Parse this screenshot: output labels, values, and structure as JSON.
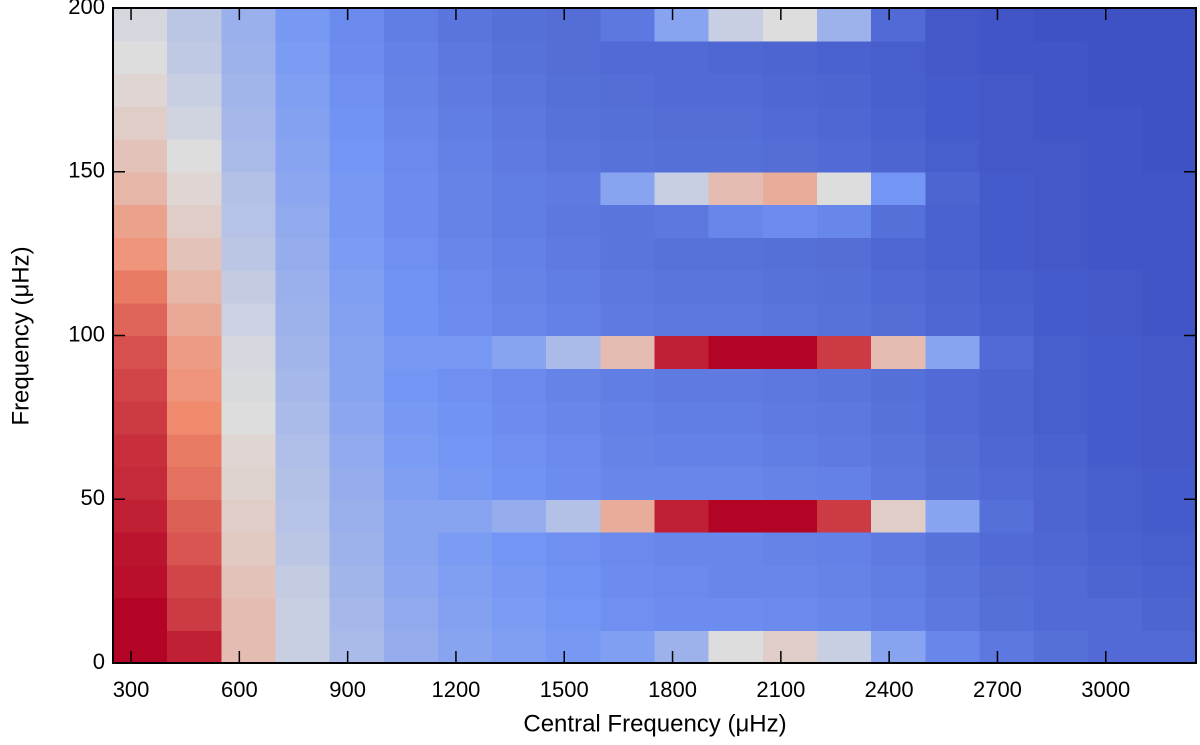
{
  "chart_data": {
    "type": "heatmap",
    "xlabel": "Central Frequency (μHz)",
    "ylabel": "Frequency (μHz)",
    "xlim": [
      250,
      3250
    ],
    "xticks": [
      300,
      600,
      900,
      1200,
      1500,
      1800,
      2100,
      2400,
      2700,
      3000
    ],
    "ylim": [
      0,
      200
    ],
    "yticks": [
      0,
      50,
      100,
      150,
      200
    ],
    "colormap": [
      "#3b4cc0",
      "#7396f5",
      "#dddddd",
      "#f08b6e",
      "#b40426"
    ],
    "x_bins": [
      250,
      400,
      550,
      700,
      850,
      1000,
      1150,
      1300,
      1450,
      1600,
      1750,
      1900,
      2050,
      2200,
      2350,
      2500,
      2650,
      2800,
      2950,
      3100,
      3250
    ],
    "y_bins": [
      0,
      10,
      20,
      30,
      40,
      50,
      60,
      70,
      80,
      90,
      100,
      110,
      120,
      130,
      140,
      150,
      160,
      170,
      180,
      190,
      200
    ],
    "z": [
      [
        1.0,
        0.95,
        0.6,
        0.45,
        0.38,
        0.33,
        0.3,
        0.28,
        0.26,
        0.28,
        0.35,
        0.5,
        0.55,
        0.45,
        0.3,
        0.2,
        0.15,
        0.12,
        0.1,
        0.1
      ],
      [
        1.0,
        0.9,
        0.6,
        0.45,
        0.37,
        0.32,
        0.29,
        0.27,
        0.25,
        0.23,
        0.22,
        0.22,
        0.21,
        0.2,
        0.18,
        0.15,
        0.12,
        0.1,
        0.1,
        0.08
      ],
      [
        0.98,
        0.88,
        0.58,
        0.44,
        0.36,
        0.31,
        0.28,
        0.26,
        0.24,
        0.22,
        0.21,
        0.2,
        0.2,
        0.19,
        0.17,
        0.14,
        0.11,
        0.1,
        0.08,
        0.07
      ],
      [
        0.97,
        0.85,
        0.56,
        0.42,
        0.35,
        0.3,
        0.27,
        0.25,
        0.23,
        0.21,
        0.2,
        0.2,
        0.19,
        0.18,
        0.16,
        0.13,
        0.1,
        0.09,
        0.07,
        0.06
      ],
      [
        0.95,
        0.83,
        0.55,
        0.41,
        0.34,
        0.3,
        0.3,
        0.33,
        0.4,
        0.65,
        0.95,
        1.0,
        1.0,
        0.9,
        0.55,
        0.3,
        0.12,
        0.08,
        0.06,
        0.05
      ],
      [
        0.93,
        0.8,
        0.53,
        0.4,
        0.33,
        0.28,
        0.26,
        0.24,
        0.22,
        0.2,
        0.2,
        0.2,
        0.19,
        0.18,
        0.15,
        0.12,
        0.1,
        0.08,
        0.06,
        0.05
      ],
      [
        0.92,
        0.78,
        0.52,
        0.39,
        0.32,
        0.27,
        0.25,
        0.23,
        0.21,
        0.19,
        0.18,
        0.18,
        0.17,
        0.16,
        0.14,
        0.11,
        0.09,
        0.07,
        0.05,
        0.04
      ],
      [
        0.9,
        0.75,
        0.5,
        0.38,
        0.31,
        0.26,
        0.24,
        0.22,
        0.2,
        0.18,
        0.17,
        0.17,
        0.16,
        0.15,
        0.13,
        0.1,
        0.08,
        0.06,
        0.05,
        0.04
      ],
      [
        0.88,
        0.72,
        0.49,
        0.37,
        0.3,
        0.25,
        0.23,
        0.21,
        0.19,
        0.17,
        0.16,
        0.16,
        0.15,
        0.14,
        0.12,
        0.1,
        0.08,
        0.06,
        0.05,
        0.04
      ],
      [
        0.86,
        0.7,
        0.48,
        0.36,
        0.3,
        0.26,
        0.26,
        0.3,
        0.38,
        0.6,
        0.95,
        1.0,
        1.0,
        0.9,
        0.6,
        0.3,
        0.1,
        0.06,
        0.05,
        0.04
      ],
      [
        0.82,
        0.66,
        0.46,
        0.35,
        0.29,
        0.24,
        0.22,
        0.2,
        0.18,
        0.16,
        0.15,
        0.15,
        0.14,
        0.13,
        0.11,
        0.09,
        0.07,
        0.05,
        0.04,
        0.03
      ],
      [
        0.78,
        0.62,
        0.44,
        0.34,
        0.28,
        0.24,
        0.21,
        0.19,
        0.17,
        0.15,
        0.14,
        0.14,
        0.13,
        0.12,
        0.1,
        0.08,
        0.06,
        0.05,
        0.04,
        0.03
      ],
      [
        0.72,
        0.58,
        0.42,
        0.33,
        0.27,
        0.23,
        0.2,
        0.18,
        0.16,
        0.14,
        0.13,
        0.13,
        0.12,
        0.11,
        0.09,
        0.07,
        0.05,
        0.04,
        0.03,
        0.03
      ],
      [
        0.68,
        0.55,
        0.41,
        0.32,
        0.26,
        0.22,
        0.19,
        0.17,
        0.15,
        0.14,
        0.15,
        0.2,
        0.22,
        0.2,
        0.12,
        0.07,
        0.05,
        0.04,
        0.03,
        0.03
      ],
      [
        0.62,
        0.52,
        0.4,
        0.31,
        0.26,
        0.22,
        0.19,
        0.17,
        0.16,
        0.3,
        0.45,
        0.6,
        0.65,
        0.5,
        0.25,
        0.08,
        0.05,
        0.04,
        0.03,
        0.03
      ],
      [
        0.58,
        0.5,
        0.38,
        0.3,
        0.25,
        0.21,
        0.18,
        0.16,
        0.14,
        0.13,
        0.12,
        0.12,
        0.11,
        0.1,
        0.08,
        0.06,
        0.04,
        0.04,
        0.03,
        0.02
      ],
      [
        0.55,
        0.47,
        0.37,
        0.29,
        0.24,
        0.2,
        0.17,
        0.15,
        0.13,
        0.12,
        0.11,
        0.11,
        0.1,
        0.09,
        0.07,
        0.05,
        0.04,
        0.03,
        0.03,
        0.02
      ],
      [
        0.52,
        0.45,
        0.36,
        0.28,
        0.23,
        0.19,
        0.16,
        0.14,
        0.12,
        0.11,
        0.1,
        0.1,
        0.09,
        0.08,
        0.06,
        0.05,
        0.04,
        0.03,
        0.02,
        0.02
      ],
      [
        0.5,
        0.43,
        0.35,
        0.27,
        0.22,
        0.18,
        0.15,
        0.13,
        0.11,
        0.1,
        0.1,
        0.09,
        0.08,
        0.07,
        0.06,
        0.04,
        0.03,
        0.03,
        0.02,
        0.02
      ],
      [
        0.48,
        0.42,
        0.34,
        0.26,
        0.21,
        0.17,
        0.14,
        0.12,
        0.11,
        0.15,
        0.3,
        0.45,
        0.5,
        0.35,
        0.1,
        0.04,
        0.03,
        0.02,
        0.02,
        0.02
      ]
    ]
  }
}
